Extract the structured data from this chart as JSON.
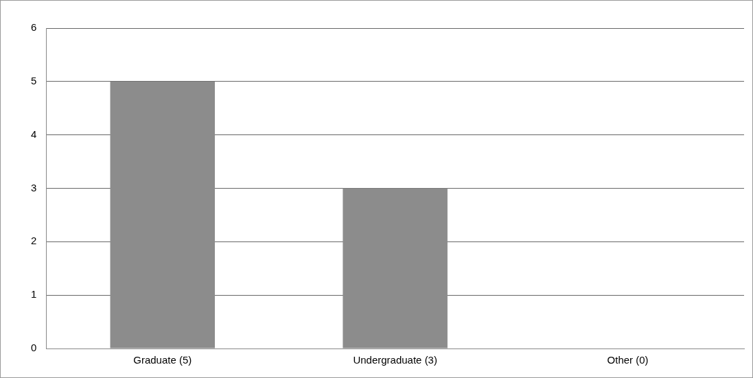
{
  "chart_data": {
    "type": "bar",
    "categories": [
      "Graduate (5)",
      "Undergraduate (3)",
      "Other (0)"
    ],
    "values": [
      5,
      3,
      0
    ],
    "color": "#8c8c8c",
    "ylim": [
      0,
      6
    ],
    "yticks": [
      0,
      1,
      2,
      3,
      4,
      5,
      6
    ],
    "grid": "y",
    "legend": false
  }
}
